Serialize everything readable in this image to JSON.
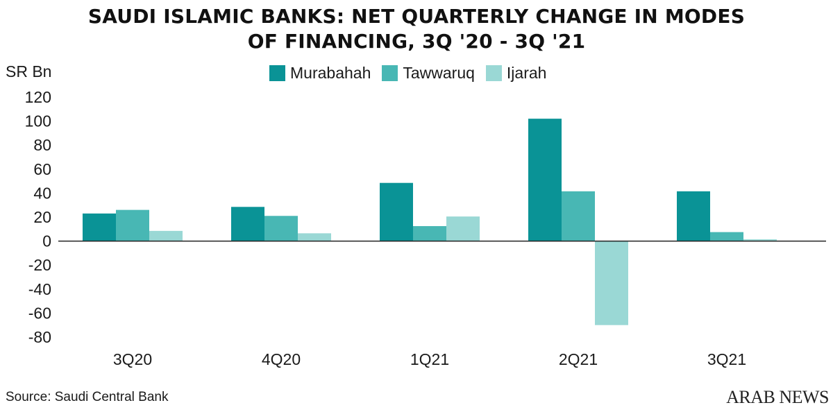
{
  "title": {
    "line1": "SAUDI ISLAMIC BANKS: NET QUARTERLY CHANGE IN MODES",
    "line2": "OF FINANCING, 3Q '20 - 3Q '21"
  },
  "unit_label": "SR Bn",
  "source": "Source: Saudi Central Bank",
  "brand": "ARAB NEWS",
  "colors": {
    "murabahah": "#0a9396",
    "tawwaruq": "#48b7b4",
    "ijarah": "#9ad8d5",
    "axis": "#222222"
  },
  "chart_data": {
    "type": "bar",
    "categories": [
      "3Q20",
      "4Q20",
      "1Q21",
      "2Q21",
      "3Q21"
    ],
    "series": [
      {
        "name": "Murabahah",
        "color": "#0a9396",
        "values": [
          23,
          28.5,
          48.5,
          102,
          41.5
        ]
      },
      {
        "name": "Tawwaruq",
        "color": "#48b7b4",
        "values": [
          26,
          21,
          12.5,
          41.5,
          7.5
        ]
      },
      {
        "name": "Ijarah",
        "color": "#9ad8d5",
        "values": [
          8.5,
          6.5,
          20.5,
          -70,
          1.5
        ]
      }
    ],
    "ylim": [
      -80,
      120
    ],
    "yticks": [
      120,
      100,
      80,
      60,
      40,
      20,
      0,
      -20,
      -40,
      -60,
      -80
    ],
    "ylabel": "SR Bn",
    "xlabel": "",
    "grid": false,
    "legend_position": "top-center"
  }
}
